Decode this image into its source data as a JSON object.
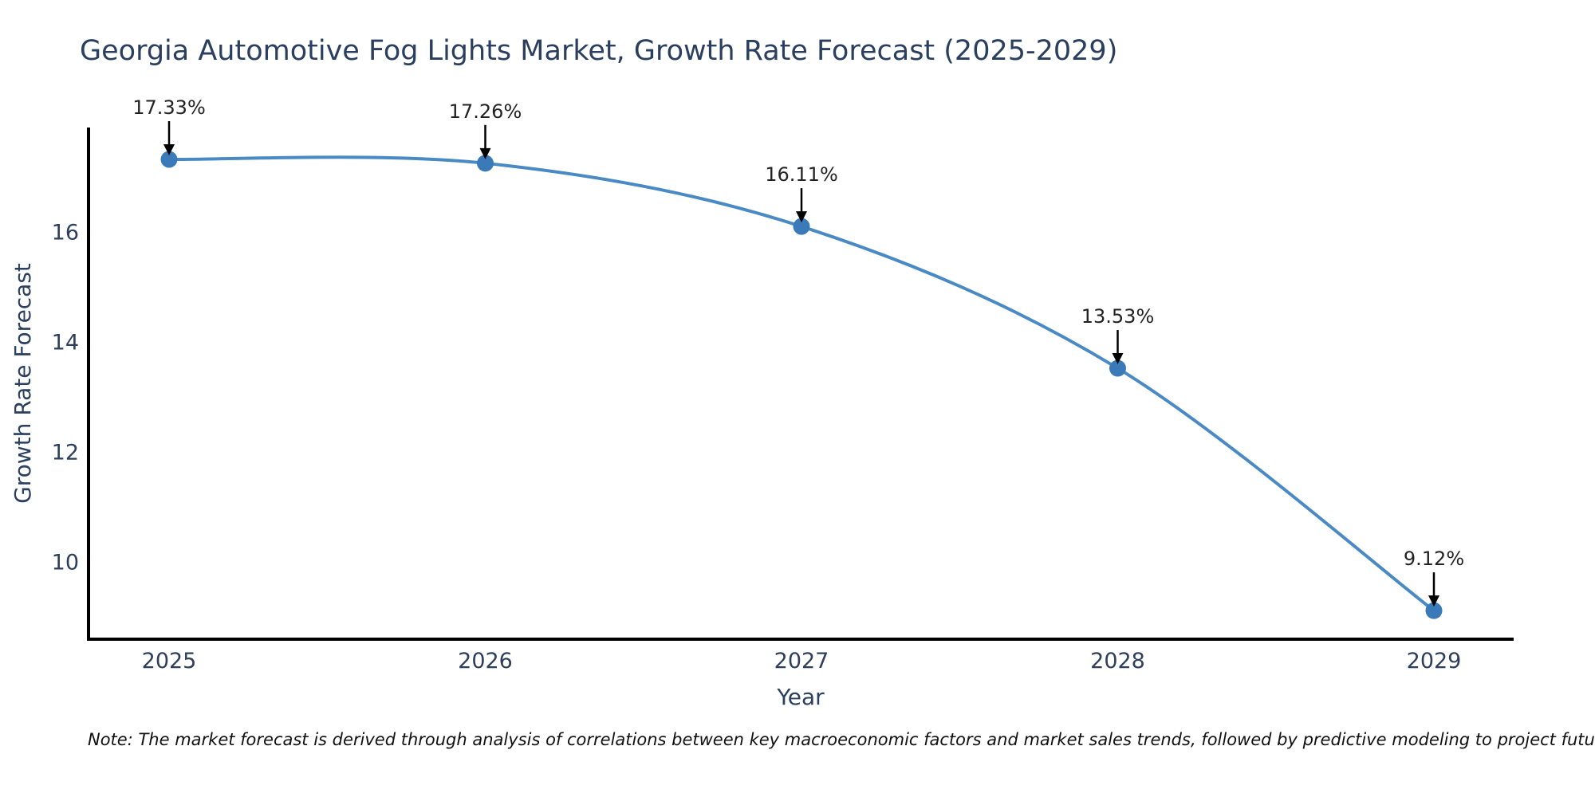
{
  "chart_data": {
    "type": "line",
    "title": "Georgia Automotive Fog Lights Market, Growth Rate Forecast (2025-2029)",
    "xlabel": "Year",
    "ylabel": "Growth Rate Forecast",
    "x": [
      "2025",
      "2026",
      "2027",
      "2028",
      "2029"
    ],
    "series": [
      {
        "name": "Growth Rate Forecast",
        "values": [
          17.33,
          17.26,
          16.11,
          13.53,
          9.12
        ]
      }
    ],
    "point_labels": [
      "17.33%",
      "17.26%",
      "16.11%",
      "13.53%",
      "9.12%"
    ],
    "y_ticks": [
      10,
      12,
      14,
      16
    ],
    "ylim": [
      8.6,
      17.91
    ],
    "grid": false,
    "legend_position": "none",
    "annotation_style": "label-with-down-arrow",
    "colors": {
      "line": "#4a8ac4",
      "marker": "#3a7ab8",
      "axis": "#000000",
      "arrow": "#000000",
      "title_text": "#2a3f5f",
      "tick_text": "#2e3f5c",
      "annotation_text": "#222222"
    }
  },
  "note": {
    "text": "Note: The market forecast is derived through analysis of correlations between key macroeconomic factors and market sales trends, followed by predictive modeling to project future sales"
  }
}
